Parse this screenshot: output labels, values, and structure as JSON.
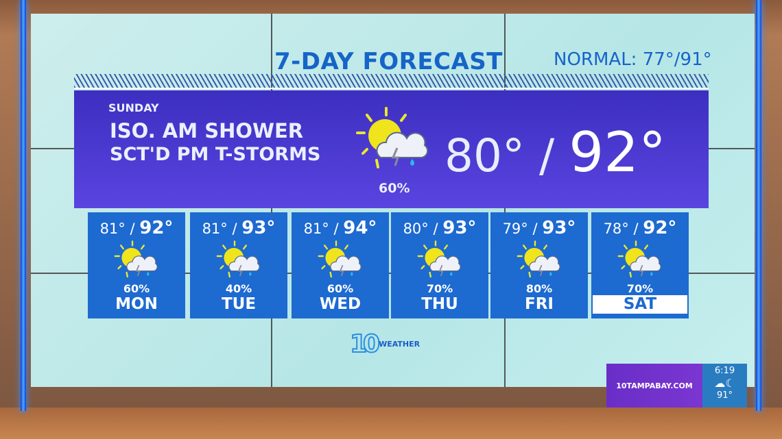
{
  "header": {
    "title": "7-DAY FORECAST",
    "normal": "NORMAL: 77°/91°"
  },
  "today": {
    "day": "SUNDAY",
    "line1": "ISO. AM SHOWER",
    "line2": "SCT'D PM T-STORMS",
    "icon": "partly-sunny-thunderstorm-icon",
    "precip": "60%",
    "low": "80°",
    "high": "92°"
  },
  "days": [
    {
      "label": "MON",
      "low": "81°",
      "high": "92°",
      "precip": "60%",
      "icon": "partly-sunny-thunderstorm-icon"
    },
    {
      "label": "TUE",
      "low": "81°",
      "high": "93°",
      "precip": "40%",
      "icon": "partly-sunny-thunderstorm-icon"
    },
    {
      "label": "WED",
      "low": "81°",
      "high": "94°",
      "precip": "60%",
      "icon": "partly-sunny-thunderstorm-icon"
    },
    {
      "label": "THU",
      "low": "80°",
      "high": "93°",
      "precip": "70%",
      "icon": "partly-sunny-thunderstorm-icon"
    },
    {
      "label": "FRI",
      "low": "79°",
      "high": "93°",
      "precip": "80%",
      "icon": "partly-sunny-thunderstorm-icon"
    },
    {
      "label": "SAT",
      "low": "78°",
      "high": "92°",
      "precip": "70%",
      "icon": "partly-sunny-thunderstorm-icon",
      "highlighted": true
    }
  ],
  "logo": {
    "number": "10",
    "word": "WEATHER"
  },
  "bug": {
    "site": "10TAMPABAY.COM",
    "time": "6:19",
    "icon": "partly-cloudy-night-icon",
    "temp": "91°"
  },
  "colors": {
    "band": "#4a3ad0",
    "card": "#1d6ad0",
    "title": "#1664c8",
    "bug_purple": "#6a2ec8"
  }
}
